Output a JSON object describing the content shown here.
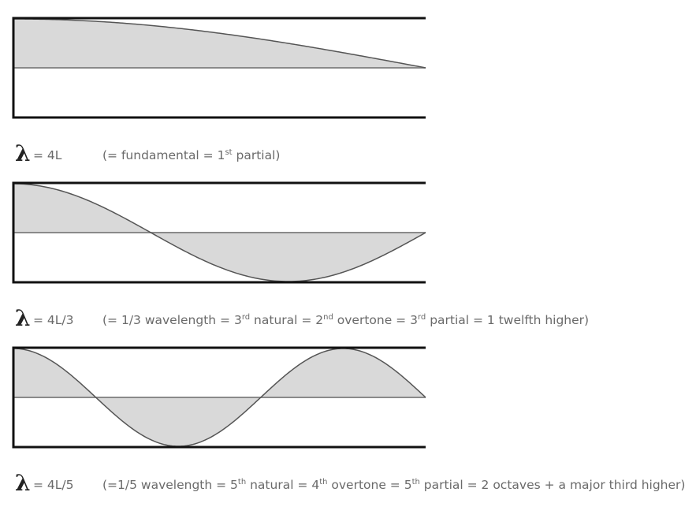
{
  "captions": [
    {
      "symbol": "λ",
      "formula": "= 4L",
      "note": [
        {
          "text": "(= fundamental = 1"
        },
        {
          "sup": "st"
        },
        {
          "text": " partial)"
        }
      ]
    },
    {
      "symbol": "λ",
      "formula": "= 4L/3",
      "note": [
        {
          "text": "(= 1/3 wavelength = 3"
        },
        {
          "sup": "rd"
        },
        {
          "text": " natural = 2"
        },
        {
          "sup": "nd"
        },
        {
          "text": " overtone = 3"
        },
        {
          "sup": "rd"
        },
        {
          "text": " partial = 1 twelfth higher)"
        }
      ]
    },
    {
      "symbol": "λ",
      "formula": "= 4L/5",
      "note": [
        {
          "text": "(=1/5 wavelength = 5"
        },
        {
          "sup": "th"
        },
        {
          "text": " natural = 4"
        },
        {
          "sup": "th"
        },
        {
          "text": " overtone = 5"
        },
        {
          "sup": "th"
        },
        {
          "text": " partial = 2 octaves + a major third higher)"
        }
      ]
    }
  ]
}
